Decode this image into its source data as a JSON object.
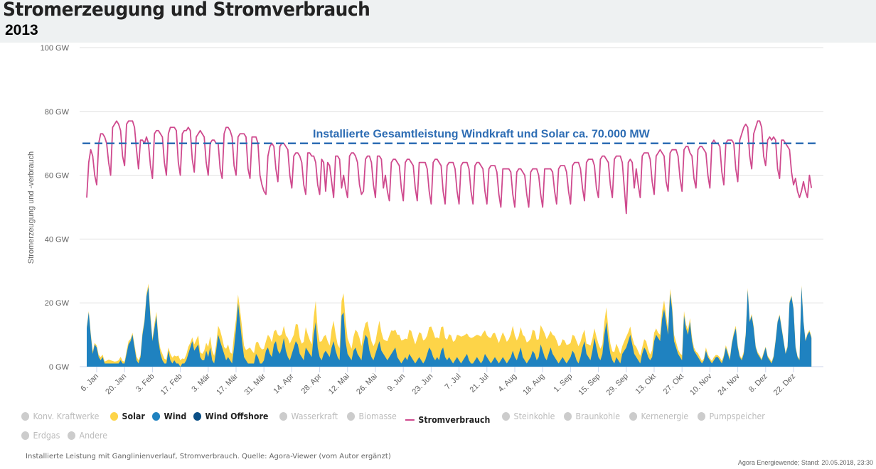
{
  "header": {
    "title": "Stromerzeugung und Stromverbrauch",
    "year": "2013"
  },
  "chart_data": {
    "type": "area",
    "title": "Stromerzeugung und Stromverbrauch",
    "subtitle": "2013",
    "ylabel": "Stromerzeugung und -verbrauch",
    "ylim": [
      0,
      100
    ],
    "y_ticks": [
      "0 GW",
      "20 GW",
      "40 GW",
      "60 GW",
      "80 GW",
      "100 GW"
    ],
    "x_ticks": [
      "6. Jan",
      "20. Jan",
      "3. Feb",
      "17. Feb",
      "3. Mär",
      "17. Mär",
      "31. Mär",
      "14. Apr",
      "28. Apr",
      "12. Mai",
      "26. Mai",
      "9. Jun",
      "23. Jun",
      "7. Jul",
      "21. Jul",
      "4. Aug",
      "18. Aug",
      "1. Sep",
      "15. Sep",
      "29. Sep",
      "13. Okt",
      "27. Okt",
      "10. Nov",
      "24. Nov",
      "8. Dez",
      "22. Dez"
    ],
    "x_start": "2013-01-01",
    "x_resolution": "daily",
    "grid": true,
    "legend_position": "bottom",
    "annotation": {
      "text": "Installierte Gesamtleistung Windkraft und Solar ca. 70.000 MW",
      "value": 70,
      "color": "#2e6db4"
    },
    "colors": {
      "solar": "#fdd448",
      "wind": "#1f82c0",
      "wind_offshore": "#0a4f86",
      "stromverbrauch": "#cf4a8e",
      "inactive": "#cccccc"
    },
    "series": [
      {
        "name": "Wind",
        "kind": "stacked-area",
        "values": [
          12,
          17,
          10,
          4,
          7,
          6,
          3,
          2,
          3,
          1,
          1,
          1,
          1,
          1,
          1,
          1,
          1,
          2,
          1,
          1,
          4,
          7,
          8,
          10,
          6,
          2,
          1,
          3,
          10,
          14,
          22,
          25,
          15,
          8,
          12,
          16,
          8,
          4,
          2,
          1,
          1,
          5,
          2,
          1,
          2,
          1,
          1,
          0,
          1,
          1,
          2,
          4,
          6,
          8,
          5,
          6,
          7,
          3,
          2,
          2,
          5,
          3,
          6,
          2,
          1,
          5,
          10,
          8,
          6,
          4,
          2,
          3,
          2,
          1,
          6,
          12,
          20,
          14,
          8,
          3,
          2,
          1,
          1,
          1,
          1,
          4,
          3,
          1,
          1,
          2,
          5,
          6,
          4,
          3,
          7,
          8,
          5,
          4,
          6,
          9,
          5,
          3,
          2,
          4,
          6,
          8,
          7,
          4,
          3,
          2,
          6,
          5,
          4,
          3,
          10,
          14,
          6,
          3,
          2,
          4,
          5,
          4,
          3,
          6,
          8,
          5,
          3,
          2,
          16,
          17,
          8,
          4,
          3,
          2,
          5,
          6,
          4,
          3,
          2,
          7,
          10,
          9,
          5,
          3,
          2,
          4,
          6,
          8,
          5,
          4,
          3,
          2,
          3,
          4,
          5,
          6,
          3,
          2,
          1,
          2,
          3,
          2,
          4,
          3,
          2,
          1,
          2,
          3,
          2,
          1,
          2,
          4,
          6,
          5,
          3,
          2,
          3,
          2,
          5,
          6,
          3,
          2,
          3,
          2,
          1,
          2,
          3,
          2,
          1,
          2,
          3,
          4,
          2,
          1,
          1,
          2,
          3,
          2,
          1,
          2,
          4,
          3,
          2,
          1,
          2,
          3,
          2,
          1,
          2,
          3,
          2,
          1,
          2,
          3,
          5,
          3,
          2,
          4,
          6,
          3,
          2,
          1,
          2,
          3,
          5,
          4,
          2,
          3,
          7,
          5,
          3,
          2,
          4,
          6,
          4,
          3,
          2,
          1,
          2,
          3,
          2,
          1,
          2,
          3,
          5,
          4,
          2,
          1,
          3,
          6,
          8,
          4,
          3,
          2,
          5,
          9,
          6,
          3,
          2,
          4,
          10,
          14,
          8,
          4,
          2,
          1,
          3,
          2,
          1,
          4,
          5,
          6,
          8,
          10,
          7,
          4,
          3,
          2,
          1,
          4,
          6,
          5,
          3,
          2,
          3,
          8,
          10,
          9,
          8,
          15,
          18,
          14,
          10,
          23,
          18,
          8,
          6,
          4,
          3,
          2,
          16,
          12,
          10,
          14,
          8,
          5,
          4,
          3,
          2,
          1,
          2,
          5,
          3,
          2,
          1,
          2,
          3,
          3,
          2,
          1,
          3,
          6,
          4,
          2,
          7,
          10,
          12,
          6,
          3,
          2,
          4,
          10,
          24,
          14,
          16,
          12,
          6,
          4,
          3,
          2,
          4,
          6,
          3,
          2,
          1,
          3,
          8,
          14,
          16,
          12,
          8,
          4,
          6,
          20,
          22,
          18,
          6,
          3,
          2,
          25,
          14,
          8,
          10,
          11,
          9
        ]
      },
      {
        "name": "Solar",
        "kind": "stacked-area",
        "values": [
          0.5,
          0.4,
          0.6,
          0.8,
          0.5,
          0.6,
          0.7,
          1,
          0.8,
          0.6,
          0.9,
          1.2,
          1,
          0.8,
          0.6,
          0.7,
          1,
          1.1,
          0.8,
          0.6,
          0.9,
          1,
          0.7,
          0.6,
          0.8,
          1.2,
          1,
          0.6,
          0.8,
          0.7,
          0.9,
          1,
          1.2,
          0.8,
          1.5,
          1.2,
          1,
          1.6,
          2,
          1.5,
          1.2,
          1,
          2,
          1.8,
          1.5,
          2.2,
          2.5,
          2,
          1.6,
          1.4,
          1.8,
          2.2,
          1.5,
          1.2,
          2,
          2.4,
          2.8,
          1.5,
          2,
          3,
          2.5,
          3.2,
          3.5,
          3,
          2.4,
          2,
          2.8,
          3.4,
          3,
          2.2,
          3.6,
          4,
          2.5,
          3,
          4.2,
          3,
          2.6,
          3.8,
          4.4,
          3.6,
          3.2,
          4.6,
          5,
          4,
          3.2,
          3.6,
          4.8,
          5.2,
          4.4,
          3.6,
          3,
          4,
          5.2,
          4.6,
          4,
          3.6,
          5,
          5.6,
          4.2,
          3.8,
          4.8,
          6,
          5.2,
          4.6,
          4,
          5.4,
          6.2,
          5,
          4.2,
          5.8,
          6.4,
          5.2,
          4.4,
          4,
          5.6,
          6.6,
          5.4,
          4.8,
          6,
          5.4,
          5,
          4,
          3.6,
          5.6,
          6.4,
          5.2,
          4,
          3.8,
          4.6,
          6,
          6.6,
          5,
          4.2,
          3.6,
          4.4,
          5.6,
          6.8,
          6,
          4.4,
          4,
          3.6,
          5.2,
          6,
          5,
          4.4,
          3.8,
          5.4,
          6.4,
          5.8,
          4.6,
          5.2,
          6,
          6.8,
          7.4,
          6.2,
          5.6,
          7,
          8,
          7.2,
          6.4,
          5.8,
          6.6,
          7.6,
          8.2,
          7,
          6,
          6.8,
          7.8,
          8.4,
          7.2,
          6.6,
          5.8,
          6.4,
          7.6,
          8,
          7,
          6.2,
          6.8,
          7.4,
          6.6,
          6,
          6.4,
          7.2,
          7.8,
          6.8,
          6.2,
          7,
          7.8,
          8.4,
          7.6,
          7,
          6.4,
          7.4,
          8,
          8.2,
          7.6,
          7,
          7.8,
          8.4,
          8.6,
          7.4,
          6.8,
          7.2,
          8,
          8.4,
          7.6,
          7,
          6.4,
          7.2,
          7.8,
          7.4,
          6.8,
          6.6,
          7.2,
          7.8,
          6.8,
          6.2,
          5.6,
          6.4,
          7,
          7.4,
          6.6,
          6,
          5.8,
          6.6,
          7.2,
          6.4,
          5.6,
          6,
          6.8,
          7.4,
          6.6,
          5.8,
          5.2,
          6,
          6.6,
          6.2,
          5.4,
          4.8,
          5.6,
          6.2,
          5.8,
          5,
          4.4,
          5,
          5.6,
          6,
          5.4,
          4.8,
          4,
          3.6,
          3.2,
          4,
          4.6,
          3.8,
          3,
          3.4,
          4.2,
          3.6,
          3,
          4,
          4.6,
          3.8,
          3.2,
          2.8,
          3.6,
          4.2,
          3.8,
          3,
          2.4,
          3,
          3.4,
          2.8,
          2.6,
          2.2,
          3,
          3.2,
          2.8,
          2.4,
          2,
          2.6,
          3,
          2.4,
          1.8,
          2.2,
          2.6,
          2,
          1.6,
          2,
          2.4,
          2.8,
          2.2,
          1.8,
          1.4,
          1.6,
          2,
          1.8,
          1.4,
          1.2,
          1.6,
          1.4,
          1.2,
          1.6,
          1.2,
          1.2,
          1,
          0.8,
          1.2,
          1,
          0.8,
          0.6,
          1,
          0.8,
          0.6,
          0.8,
          1,
          0.7,
          0.6,
          0.9,
          0.8,
          0.6,
          0.7,
          0.8,
          0.6,
          0.5,
          0.7,
          0.8,
          0.6,
          0.5,
          0.6,
          0.7,
          0.5,
          0.6,
          0.5,
          0.5,
          0.6,
          0.4,
          0.5,
          0.6,
          0.4,
          0.5,
          0.3,
          0.4,
          0.5,
          0.6,
          0.4,
          0.5,
          0.3,
          0.4,
          0.5,
          0.4,
          0.3,
          0.5,
          0.4,
          0.3,
          0.4,
          0.5,
          0.3,
          0.4,
          0.5,
          0.4,
          0.3,
          0.4,
          0.5,
          0.4
        ]
      },
      {
        "name": "Stromverbrauch",
        "kind": "line",
        "values": [
          53,
          64,
          68,
          66,
          60,
          57,
          70,
          73,
          73,
          72,
          70,
          64,
          60,
          75,
          76,
          77,
          76,
          74,
          66,
          63,
          76,
          77,
          77,
          77,
          75,
          68,
          62,
          71,
          71,
          70,
          72,
          70,
          63,
          59,
          73,
          74,
          74,
          73,
          72,
          64,
          60,
          73,
          75,
          75,
          75,
          74,
          64,
          60,
          73,
          74,
          74,
          75,
          74,
          65,
          61,
          72,
          73,
          74,
          73,
          72,
          64,
          60,
          70,
          71,
          71,
          70,
          70,
          62,
          59,
          73,
          75,
          75,
          74,
          72,
          63,
          60,
          72,
          73,
          73,
          73,
          72,
          62,
          59,
          72,
          72,
          72,
          70,
          60,
          57,
          55,
          54,
          66,
          69,
          70,
          69,
          62,
          58,
          69,
          70,
          70,
          69,
          68,
          60,
          56,
          66,
          67,
          67,
          66,
          64,
          57,
          54,
          67,
          67,
          66,
          66,
          64,
          57,
          54,
          65,
          64,
          55,
          64,
          63,
          58,
          53,
          66,
          66,
          65,
          56,
          60,
          56,
          53,
          66,
          67,
          67,
          66,
          64,
          57,
          54,
          55,
          65,
          66,
          66,
          64,
          57,
          53,
          66,
          66,
          65,
          56,
          60,
          55,
          52,
          64,
          65,
          65,
          64,
          63,
          56,
          52,
          64,
          65,
          65,
          64,
          63,
          56,
          52,
          64,
          64,
          64,
          64,
          62,
          55,
          51,
          64,
          65,
          65,
          64,
          63,
          55,
          51,
          63,
          64,
          64,
          64,
          62,
          55,
          51,
          63,
          64,
          64,
          64,
          62,
          55,
          51,
          63,
          64,
          64,
          63,
          62,
          55,
          51,
          62,
          63,
          63,
          63,
          61,
          54,
          50,
          62,
          62,
          62,
          62,
          61,
          54,
          50,
          61,
          62,
          62,
          61,
          60,
          54,
          50,
          61,
          62,
          62,
          62,
          60,
          54,
          50,
          62,
          62,
          62,
          62,
          61,
          55,
          51,
          62,
          63,
          63,
          63,
          61,
          55,
          51,
          63,
          64,
          64,
          64,
          62,
          56,
          52,
          64,
          65,
          65,
          65,
          63,
          56,
          53,
          65,
          66,
          66,
          65,
          64,
          57,
          53,
          65,
          66,
          66,
          66,
          64,
          56,
          48,
          64,
          65,
          64,
          56,
          62,
          57,
          53,
          66,
          67,
          67,
          67,
          65,
          58,
          54,
          66,
          67,
          68,
          67,
          66,
          58,
          55,
          67,
          68,
          68,
          68,
          66,
          59,
          55,
          68,
          69,
          69,
          67,
          66,
          59,
          56,
          68,
          69,
          69,
          68,
          67,
          60,
          56,
          70,
          71,
          70,
          70,
          69,
          61,
          57,
          70,
          71,
          71,
          71,
          70,
          62,
          58,
          71,
          73,
          75,
          76,
          75,
          66,
          62,
          73,
          75,
          77,
          77,
          75,
          66,
          63,
          71,
          72,
          71,
          72,
          71,
          62,
          59,
          71,
          71,
          70,
          69,
          68,
          61,
          57,
          59,
          55,
          53,
          55,
          58,
          55,
          53,
          60,
          56
        ]
      }
    ]
  },
  "legend": [
    {
      "label": "Konv. Kraftwerke",
      "active": false,
      "shape": "dot",
      "color": "#cccccc"
    },
    {
      "label": "Solar",
      "active": true,
      "shape": "dot",
      "color": "#fdd448"
    },
    {
      "label": "Wind",
      "active": true,
      "shape": "dot",
      "color": "#1f82c0"
    },
    {
      "label": "Wind Offshore",
      "active": true,
      "shape": "dot",
      "color": "#0a4f86"
    },
    {
      "label": "Wasserkraft",
      "active": false,
      "shape": "dot",
      "color": "#cccccc"
    },
    {
      "label": "Biomasse",
      "active": false,
      "shape": "dot",
      "color": "#cccccc"
    },
    {
      "label": "Stromverbrauch",
      "active": true,
      "shape": "line",
      "color": "#cf4a8e"
    },
    {
      "label": "Steinkohle",
      "active": false,
      "shape": "dot",
      "color": "#cccccc"
    },
    {
      "label": "Braunkohle",
      "active": false,
      "shape": "dot",
      "color": "#cccccc"
    },
    {
      "label": "Kernenergie",
      "active": false,
      "shape": "dot",
      "color": "#cccccc"
    },
    {
      "label": "Pumpspeicher",
      "active": false,
      "shape": "dot",
      "color": "#cccccc"
    },
    {
      "label": "Erdgas",
      "active": false,
      "shape": "dot",
      "color": "#cccccc"
    },
    {
      "label": "Andere",
      "active": false,
      "shape": "dot",
      "color": "#cccccc"
    }
  ],
  "footer": {
    "caption": "Installierte Leistung mit Ganglinienverlauf, Stromverbrauch. Quelle: Agora-Viewer (vom Autor ergänzt)",
    "source": "Agora Energiewende; Stand: 20.05.2018, 23:30"
  }
}
